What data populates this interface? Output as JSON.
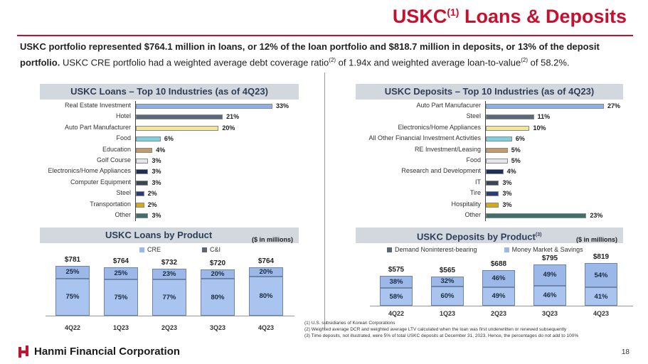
{
  "header": {
    "title_main": "USKC",
    "title_sup": "(1)",
    "title_rest": " Loans & Deposits"
  },
  "intro": {
    "bold": "USKC portfolio represented $764.1 million in loans, or 12% of the loan portfolio and $818.7 million in deposits, or 13% of the deposit portfolio.",
    "normal_1": " USKC CRE portfolio had a weighted average debt coverage ratio",
    "sup_1": "(2)",
    "normal_2": " of 1.94x and weighted average loan-to-value",
    "sup_2": "(2)",
    "normal_3": " of 58.2%."
  },
  "loans_industries": {
    "heading": "USKC Loans – Top 10 Industries (as of 4Q23)",
    "max": 33,
    "items": [
      {
        "label": "Real Estate Investment",
        "value": 33,
        "text": "33%",
        "color": "#8fb0e6"
      },
      {
        "label": "Hotel",
        "value": 21,
        "text": "21%",
        "color": "#5a6a7e"
      },
      {
        "label": "Auto Part Manufacturer",
        "value": 20,
        "text": "20%",
        "color": "#f3e59a"
      },
      {
        "label": "Food",
        "value": 6,
        "text": "6%",
        "color": "#7fd0de"
      },
      {
        "label": "Education",
        "value": 4,
        "text": "4%",
        "color": "#c49a6c"
      },
      {
        "label": "Golf Course",
        "value": 3,
        "text": "3%",
        "color": "#e6e6ea"
      },
      {
        "label": "Electronics/Home Appliances",
        "value": 3,
        "text": "3%",
        "color": "#1f2d5a"
      },
      {
        "label": "Computer Equipment",
        "value": 3,
        "text": "3%",
        "color": "#3c4650"
      },
      {
        "label": "Steel",
        "value": 2,
        "text": "2%",
        "color": "#283c78"
      },
      {
        "label": "Transportation",
        "value": 2,
        "text": "2%",
        "color": "#d7a818"
      },
      {
        "label": "Other",
        "value": 3,
        "text": "3%",
        "color": "#3f6f6a"
      }
    ]
  },
  "deposits_industries": {
    "heading": "USKC Deposits – Top 10 Industries (as of 4Q23)",
    "max": 27,
    "items": [
      {
        "label": "Auto Part Manufacurer",
        "value": 27,
        "text": "27%",
        "color": "#8fb0e6"
      },
      {
        "label": "Steel",
        "value": 11,
        "text": "11%",
        "color": "#5a6a7e"
      },
      {
        "label": "Electronics/Home Appliances",
        "value": 10,
        "text": "10%",
        "color": "#f3e59a"
      },
      {
        "label": "All Other Financial Investment Activities",
        "value": 6,
        "text": "6%",
        "color": "#7fd0de"
      },
      {
        "label": "RE Investment/Leasing",
        "value": 5,
        "text": "5%",
        "color": "#c49a6c"
      },
      {
        "label": "Food",
        "value": 5,
        "text": "5%",
        "color": "#e6e6ea"
      },
      {
        "label": "Research and Development",
        "value": 4,
        "text": "4%",
        "color": "#1f2d5a"
      },
      {
        "label": "IT",
        "value": 3,
        "text": "3%",
        "color": "#3c4650"
      },
      {
        "label": "Tire",
        "value": 3,
        "text": "3%",
        "color": "#283c78"
      },
      {
        "label": "Hospitality",
        "value": 3,
        "text": "3%",
        "color": "#d7a818"
      },
      {
        "label": "Other",
        "value": 23,
        "text": "23%",
        "color": "#3f6f6a"
      }
    ]
  },
  "loans_product": {
    "heading": "USKC Loans by Product",
    "unit": "($ in millions)",
    "legend": [
      {
        "name": "CRE",
        "color": "#9bb8e8"
      },
      {
        "name": "C&I",
        "color": "#5b6670"
      }
    ],
    "max_total": 781,
    "bars": [
      {
        "cat": "4Q22",
        "total": 781,
        "total_text": "$781",
        "bottom_text": "75%",
        "bottom": 75,
        "top_text": "25%",
        "top": 25
      },
      {
        "cat": "1Q23",
        "total": 764,
        "total_text": "$764",
        "bottom_text": "75%",
        "bottom": 75,
        "top_text": "25%",
        "top": 25
      },
      {
        "cat": "2Q23",
        "total": 732,
        "total_text": "$732",
        "bottom_text": "77%",
        "bottom": 77,
        "top_text": "23%",
        "top": 23
      },
      {
        "cat": "3Q23",
        "total": 720,
        "total_text": "$720",
        "bottom_text": "80%",
        "bottom": 80,
        "top_text": "20%",
        "top": 20
      },
      {
        "cat": "4Q23",
        "total": 764,
        "total_text": "$764",
        "bottom_text": "80%",
        "bottom": 80,
        "top_text": "20%",
        "top": 20
      }
    ]
  },
  "deposits_product": {
    "heading": "USKC Deposits by Product",
    "heading_sup": "(3)",
    "unit": "($ in millions)",
    "legend": [
      {
        "name": "Demand Noninterest-bearing",
        "color": "#5b6670"
      },
      {
        "name": "Money Market & Savings",
        "color": "#9bb8e8"
      }
    ],
    "max_total": 819,
    "bars": [
      {
        "cat": "4Q22",
        "total": 575,
        "total_text": "$575",
        "bottom_text": "58%",
        "bottom": 58,
        "top_text": "38%",
        "top": 38
      },
      {
        "cat": "1Q23",
        "total": 565,
        "total_text": "$565",
        "bottom_text": "60%",
        "bottom": 60,
        "top_text": "32%",
        "top": 32
      },
      {
        "cat": "2Q23",
        "total": 688,
        "total_text": "$688",
        "bottom_text": "49%",
        "bottom": 49,
        "top_text": "46%",
        "top": 46
      },
      {
        "cat": "3Q23",
        "total": 795,
        "total_text": "$795",
        "bottom_text": "46%",
        "bottom": 46,
        "top_text": "49%",
        "top": 49
      },
      {
        "cat": "4Q23",
        "total": 819,
        "total_text": "$819",
        "bottom_text": "41%",
        "bottom": 41,
        "top_text": "54%",
        "top": 54
      }
    ]
  },
  "footnotes": [
    "(1)    U.S. subsidiaries of Korean Corporations",
    "(2)    Weighted average DCR and weighted average LTV calculated when the loan was first underwritten or renewed subsequently",
    "(3)    Time deposits, not illustrated, were 5% of total USKC deposits at December 31, 2023. Hence, the percentages do not add to 100%"
  ],
  "footer": {
    "company": "Hanmi Financial Corporation",
    "page": "18"
  }
}
